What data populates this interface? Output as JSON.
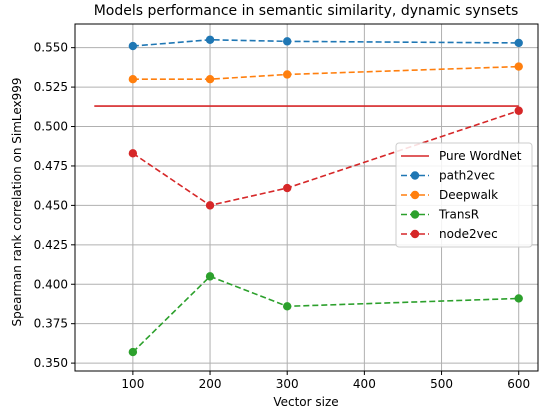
{
  "chart_data": {
    "type": "line",
    "title": "Models performance in semantic similarity, dynamic synsets",
    "xlabel": "Vector size",
    "ylabel": "Spearman rank correlation on SimLex999",
    "xlim": [
      25,
      625
    ],
    "ylim": [
      0.345,
      0.565
    ],
    "xticks": [
      100,
      200,
      300,
      400,
      500,
      600
    ],
    "yticks": [
      0.35,
      0.375,
      0.4,
      0.425,
      0.45,
      0.475,
      0.5,
      0.525,
      0.55
    ],
    "ytick_format": 3,
    "grid": true,
    "legend_position": "center-right",
    "reference_lines": [
      {
        "name": "Pure WordNet",
        "y": 0.513,
        "x_range": [
          50,
          600
        ],
        "color": "#d62728",
        "style": "solid"
      }
    ],
    "series": [
      {
        "name": "path2vec",
        "color": "#1f77b4",
        "x": [
          100,
          200,
          300,
          600
        ],
        "values": [
          0.551,
          0.555,
          0.554,
          0.553
        ]
      },
      {
        "name": "Deepwalk",
        "color": "#ff7f0e",
        "x": [
          100,
          200,
          300,
          600
        ],
        "values": [
          0.53,
          0.53,
          0.533,
          0.538
        ]
      },
      {
        "name": "TransR",
        "color": "#2ca02c",
        "x": [
          100,
          200,
          300,
          600
        ],
        "values": [
          0.357,
          0.405,
          0.386,
          0.391
        ]
      },
      {
        "name": "node2vec",
        "color": "#d62728",
        "x": [
          100,
          200,
          300,
          600
        ],
        "values": [
          0.483,
          0.45,
          0.461,
          0.51
        ]
      }
    ]
  }
}
